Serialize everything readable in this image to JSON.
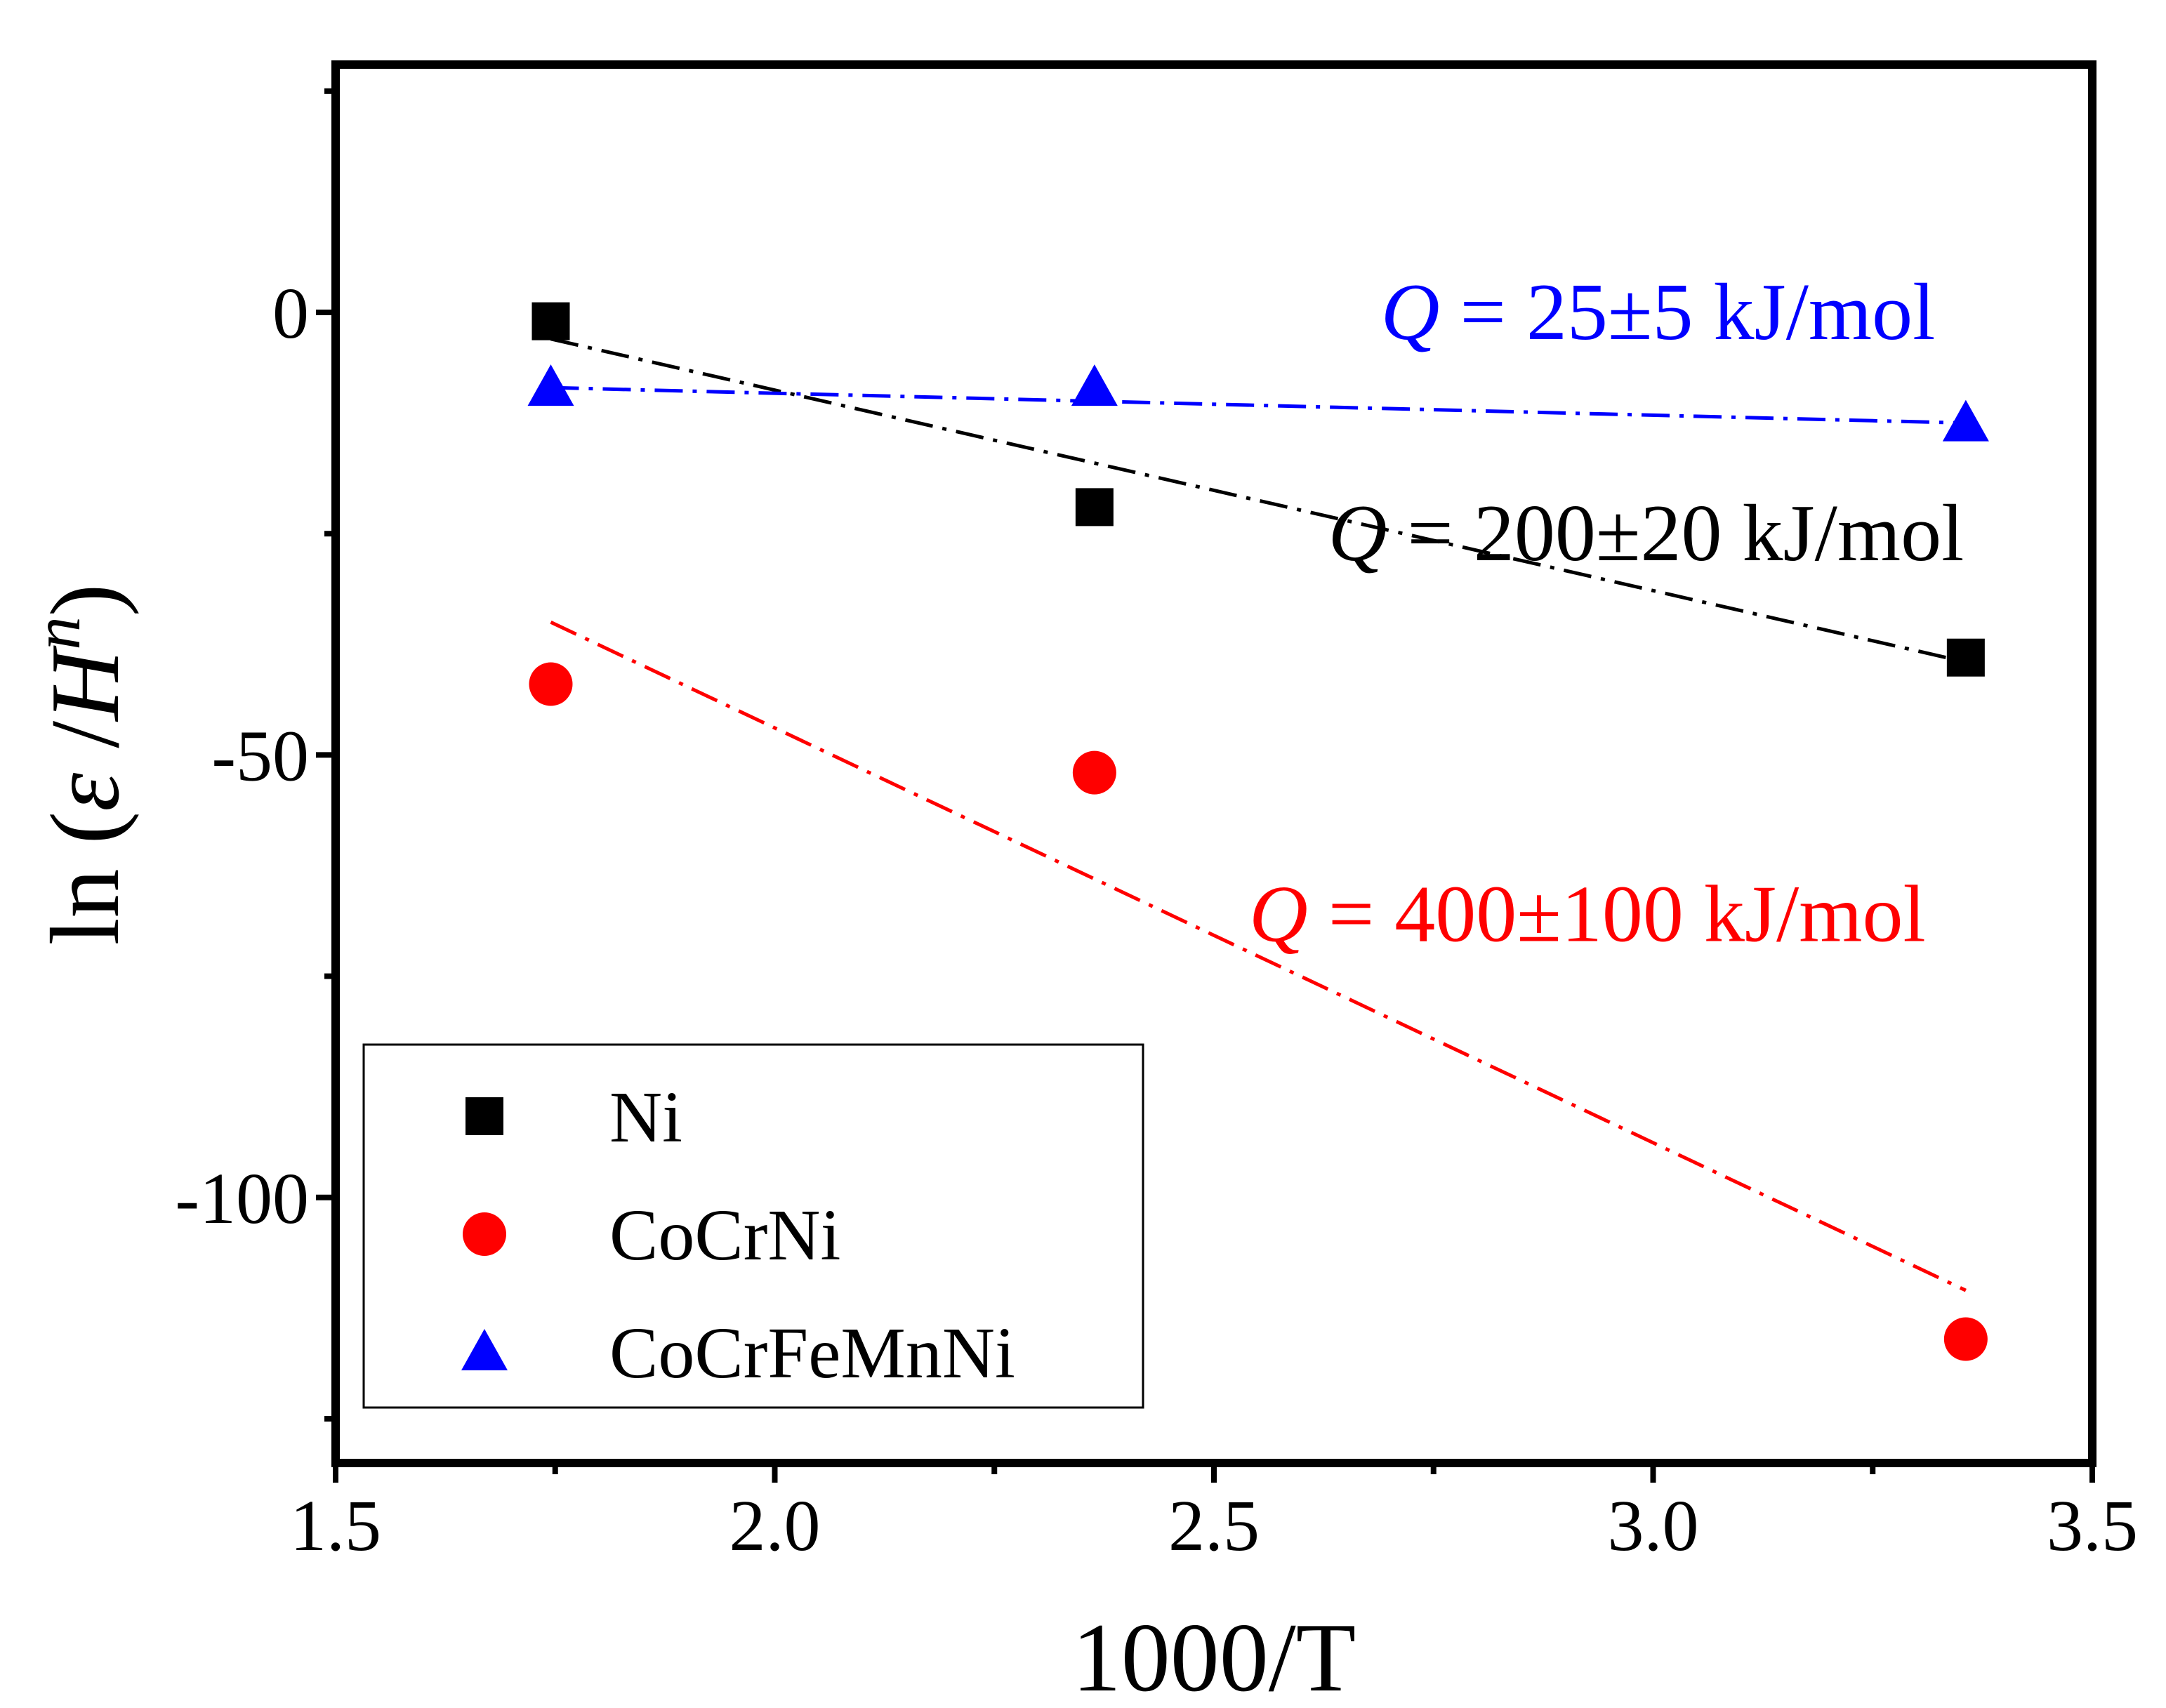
{
  "chart_data": {
    "type": "scatter",
    "title": "",
    "xlabel": "1000/T",
    "ylabel_parts": {
      "prefix": "ln (",
      "epsilon": "ε",
      "sep": " /",
      "H": "H",
      "n": "n",
      "suffix": ")"
    },
    "xlim": [
      1.5,
      3.5
    ],
    "ylim": [
      -130,
      28
    ],
    "x_ticks": [
      1.5,
      2.0,
      2.5,
      3.0,
      3.5
    ],
    "x_tick_labels": [
      "1.5",
      "2.0",
      "2.5",
      "3.0",
      "3.5"
    ],
    "y_ticks": [
      0,
      -50,
      -100
    ],
    "y_tick_labels": [
      "0",
      "-50",
      "-100"
    ],
    "grid": false,
    "legend_position": "bottom-left",
    "series": [
      {
        "name": "Ni",
        "color": "#000000",
        "marker": "square",
        "x": [
          1.745,
          2.364,
          3.356
        ],
        "y": [
          -1,
          -22,
          -39
        ],
        "fit": {
          "x": [
            1.745,
            3.356
          ],
          "y": [
            -3,
            -39.5
          ]
        },
        "annotation": {
          "prefix": "",
          "Q": "Q",
          "text": " = 200±20 kJ/mol",
          "x": 2.63,
          "y": -25
        }
      },
      {
        "name": "CoCrNi",
        "color": "#ff0000",
        "marker": "circle",
        "x": [
          1.745,
          2.364,
          3.356
        ],
        "y": [
          -42,
          -52,
          -116
        ],
        "fit": {
          "x": [
            1.745,
            3.356
          ],
          "y": [
            -35,
            -110.5
          ]
        },
        "annotation": {
          "prefix": "",
          "Q": "Q",
          "text": " = 400±100 kJ/mol",
          "x": 2.54,
          "y": -68
        }
      },
      {
        "name": "CoCrFeMnNi",
        "color": "#0000ff",
        "marker": "triangle",
        "x": [
          1.745,
          2.364,
          3.356
        ],
        "y": [
          -8.5,
          -8.5,
          -12.5
        ],
        "fit": {
          "x": [
            1.745,
            3.356
          ],
          "y": [
            -8.5,
            -12.5
          ]
        },
        "annotation": {
          "prefix": "",
          "Q": "Q",
          "text": " = 25±5 kJ/mol",
          "x": 2.69,
          "y": 0
        }
      }
    ]
  }
}
